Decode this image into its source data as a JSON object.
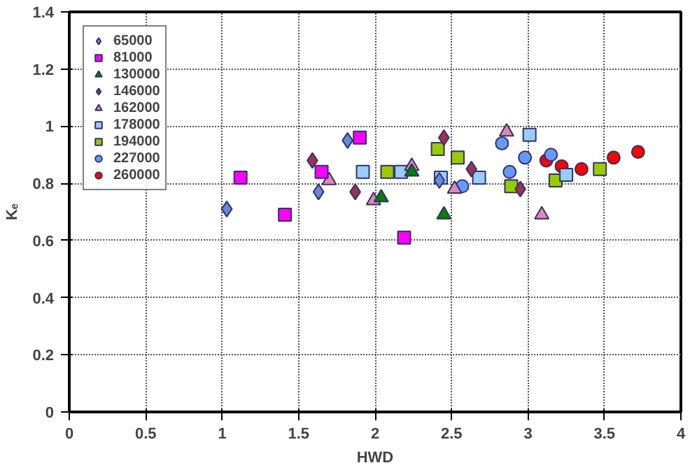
{
  "chart_data": {
    "type": "scatter",
    "xlabel": "HWD",
    "ylabel": "Kₑ",
    "xlim": [
      0,
      4
    ],
    "ylim": [
      0,
      1.4
    ],
    "xticks": [
      0,
      0.5,
      1,
      1.5,
      2,
      2.5,
      3,
      3.5,
      4
    ],
    "yticks": [
      0,
      0.2,
      0.4,
      0.6,
      0.8,
      1,
      1.2,
      1.4
    ],
    "grid": true,
    "legend": "top left",
    "series": [
      {
        "name": "65000",
        "color": "#6688dd",
        "marker": "diamond",
        "x": [
          1.03,
          1.63,
          1.82,
          2.42
        ],
        "values": [
          0.71,
          0.77,
          0.95,
          0.81
        ]
      },
      {
        "name": "81000",
        "color": "#ff00ff",
        "marker": "square",
        "x": [
          1.12,
          1.41,
          1.65,
          1.9,
          2.19
        ],
        "values": [
          0.82,
          0.69,
          0.84,
          0.96,
          0.61
        ]
      },
      {
        "name": "130000",
        "color": "#008000",
        "marker": "triangle",
        "x": [
          2.04,
          2.24,
          2.45
        ],
        "values": [
          0.75,
          0.84,
          0.69
        ]
      },
      {
        "name": "146000",
        "color": "#993355",
        "marker": "diamond",
        "x": [
          1.59,
          1.87,
          2.45,
          2.63,
          2.95
        ],
        "values": [
          0.88,
          0.77,
          0.96,
          0.85,
          0.78
        ]
      },
      {
        "name": "162000",
        "color": "#dd88bb",
        "marker": "triangle",
        "x": [
          1.7,
          1.99,
          2.24,
          2.52,
          2.86,
          3.09
        ],
        "values": [
          0.81,
          0.74,
          0.86,
          0.78,
          0.98,
          0.69
        ]
      },
      {
        "name": "178000",
        "color": "#99ccff",
        "marker": "square",
        "x": [
          1.92,
          2.17,
          2.43,
          2.68,
          3.01,
          3.25
        ],
        "values": [
          0.84,
          0.84,
          0.82,
          0.82,
          0.97,
          0.83
        ]
      },
      {
        "name": "194000",
        "color": "#99cc00",
        "marker": "square",
        "x": [
          2.08,
          2.41,
          2.54,
          2.89,
          3.18,
          3.47
        ],
        "values": [
          0.84,
          0.92,
          0.89,
          0.79,
          0.81,
          0.85
        ]
      },
      {
        "name": "227000",
        "color": "#6699ff",
        "marker": "circle",
        "x": [
          2.57,
          2.83,
          2.88,
          2.98,
          3.15
        ],
        "values": [
          0.79,
          0.94,
          0.84,
          0.89,
          0.9
        ]
      },
      {
        "name": "260000",
        "color": "#ff0000",
        "marker": "circle",
        "x": [
          3.12,
          3.22,
          3.35,
          3.56,
          3.72
        ],
        "values": [
          0.88,
          0.86,
          0.85,
          0.89,
          0.91
        ]
      }
    ]
  }
}
